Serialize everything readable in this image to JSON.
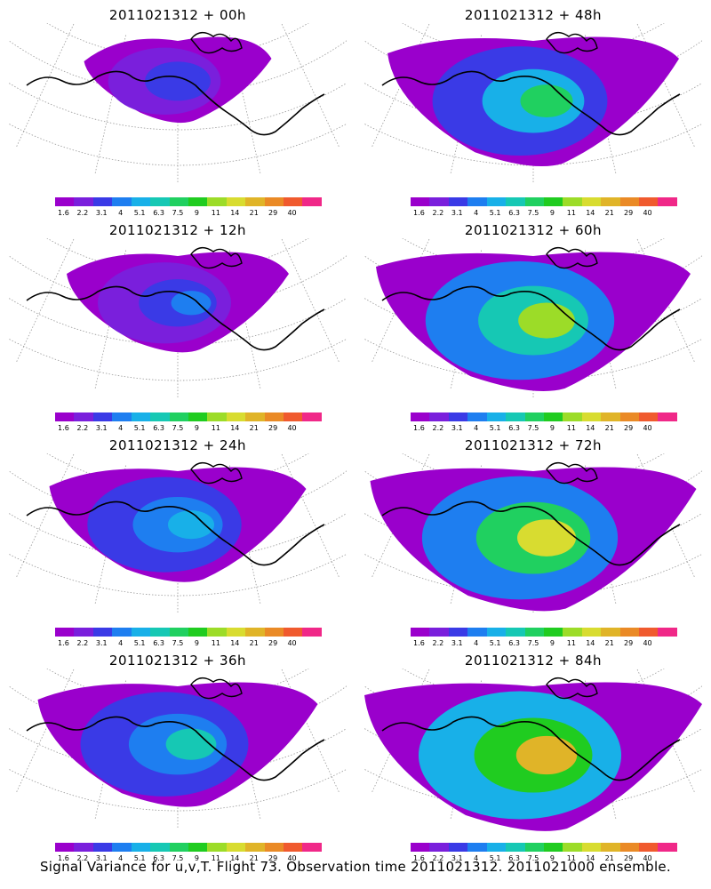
{
  "panels": [
    {
      "title": "2011021312 + 00h",
      "spread": 0.35,
      "level": 0.1
    },
    {
      "title": "2011021312 + 48h",
      "spread": 0.8,
      "level": 0.4
    },
    {
      "title": "2011021312 + 12h",
      "spread": 0.5,
      "level": 0.18
    },
    {
      "title": "2011021312 + 60h",
      "spread": 0.9,
      "level": 0.55
    },
    {
      "title": "2011021312 + 24h",
      "spread": 0.65,
      "level": 0.25
    },
    {
      "title": "2011021312 + 72h",
      "spread": 0.95,
      "level": 0.62
    },
    {
      "title": "2011021312 + 36h",
      "spread": 0.75,
      "level": 0.32
    },
    {
      "title": "2011021312 + 84h",
      "spread": 1.0,
      "level": 0.7
    }
  ],
  "colorbar": {
    "labels": [
      "1.6",
      "2.2",
      "3.1",
      "4",
      "5.1",
      "6.3",
      "7.5",
      "9",
      "11",
      "14",
      "21",
      "29",
      "40"
    ],
    "colors": [
      "#9a00cc",
      "#7a1fdc",
      "#3a3ae6",
      "#1e7ef0",
      "#18b0e8",
      "#16c8b4",
      "#20d060",
      "#20cc20",
      "#9cdc28",
      "#d8dc30",
      "#e0b428",
      "#ea8a26",
      "#f05a2e",
      "#f02888"
    ]
  },
  "footer": "Signal Variance for u,v,T. Flight 73. Observation time 2011021312. 2011021000 ensemble."
}
